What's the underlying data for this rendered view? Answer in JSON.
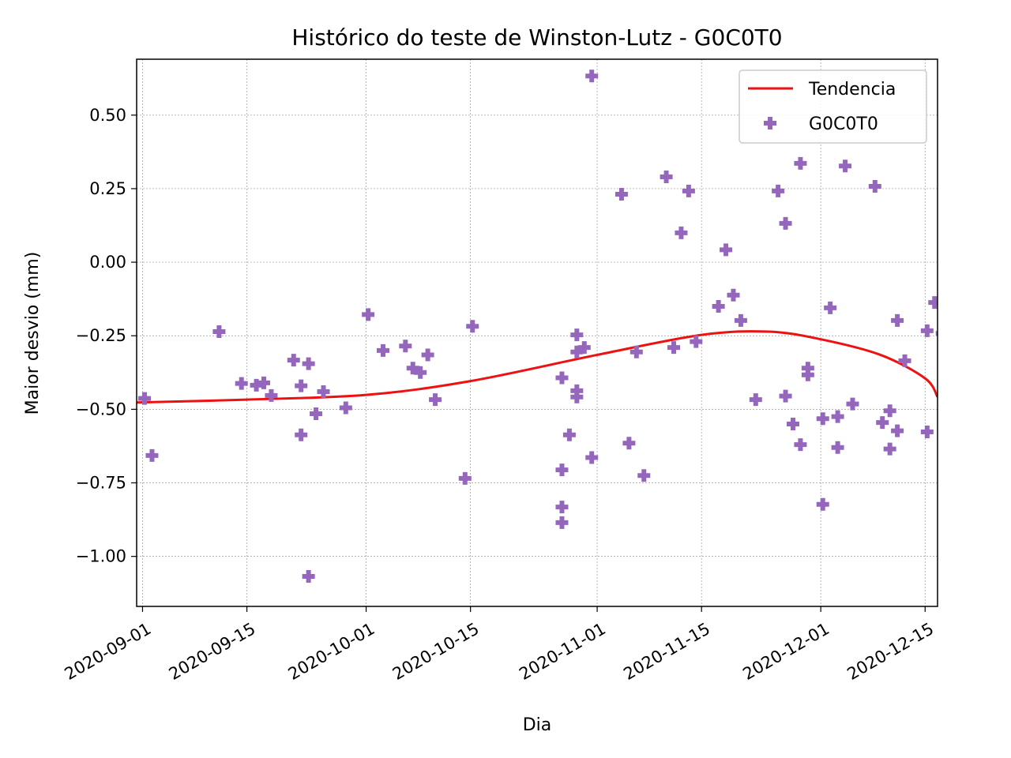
{
  "chart_data": {
    "type": "scatter",
    "title": "Histórico do teste de Winston-Lutz - G0C0T0",
    "xlabel": "Dia",
    "ylabel": "Maior desvio (mm)",
    "x_scale": "date",
    "xlim": [
      "2020-08-31T05:00",
      "2020-12-16T16:00"
    ],
    "ylim": [
      -1.17,
      0.69
    ],
    "x_ticks": [
      "2020-09-01",
      "2020-09-15",
      "2020-10-01",
      "2020-10-15",
      "2020-11-01",
      "2020-11-15",
      "2020-12-01",
      "2020-12-15"
    ],
    "y_ticks": [
      0.5,
      0.25,
      0.0,
      -0.25,
      -0.5,
      -0.75,
      -1.0
    ],
    "y_tick_labels": [
      "0.50",
      "0.25",
      "0.00",
      "−0.25",
      "−0.50",
      "−0.75",
      "−1.00"
    ],
    "grid": true,
    "legend_position": "top-right",
    "colors": {
      "trend": "#ee1111",
      "points": "#9467bd",
      "grid": "#999999",
      "axes": "#000000"
    },
    "series": [
      {
        "name": "Tendencia",
        "type": "line",
        "points": [
          [
            "2020-08-31T05:00",
            -0.477
          ],
          [
            "2020-09-15",
            -0.467
          ],
          [
            "2020-10-01",
            -0.451
          ],
          [
            "2020-10-15",
            -0.404
          ],
          [
            "2020-11-01",
            -0.315
          ],
          [
            "2020-11-15",
            -0.247
          ],
          [
            "2020-11-24",
            -0.236
          ],
          [
            "2020-12-01",
            -0.262
          ],
          [
            "2020-12-09",
            -0.315
          ],
          [
            "2020-12-15",
            -0.395
          ],
          [
            "2020-12-16T16:00",
            -0.458
          ]
        ]
      },
      {
        "name": "G0C0T0",
        "type": "scatter",
        "marker": "plus-filled",
        "points": [
          [
            "2020-08-31",
            -0.463
          ],
          [
            "2020-09-01",
            -0.657
          ],
          [
            "2020-09-10",
            -0.236
          ],
          [
            "2020-09-13",
            -0.412
          ],
          [
            "2020-09-15",
            -0.418
          ],
          [
            "2020-09-16",
            -0.41
          ],
          [
            "2020-09-17",
            -0.453
          ],
          [
            "2020-09-20",
            -0.333
          ],
          [
            "2020-09-21",
            -0.42
          ],
          [
            "2020-09-21",
            -0.587
          ],
          [
            "2020-09-22",
            -0.345
          ],
          [
            "2020-09-22",
            -1.068
          ],
          [
            "2020-09-23",
            -0.515
          ],
          [
            "2020-09-24",
            -0.44
          ],
          [
            "2020-09-27",
            -0.495
          ],
          [
            "2020-09-30",
            -0.178
          ],
          [
            "2020-10-02",
            -0.3
          ],
          [
            "2020-10-05",
            -0.285
          ],
          [
            "2020-10-06",
            -0.36
          ],
          [
            "2020-10-07",
            -0.375
          ],
          [
            "2020-10-08",
            -0.315
          ],
          [
            "2020-10-09",
            -0.467
          ],
          [
            "2020-10-13",
            -0.735
          ],
          [
            "2020-10-14",
            -0.218
          ],
          [
            "2020-10-26",
            -0.393
          ],
          [
            "2020-10-26",
            -0.706
          ],
          [
            "2020-10-26",
            -0.832
          ],
          [
            "2020-10-26",
            -0.885
          ],
          [
            "2020-10-27",
            -0.587
          ],
          [
            "2020-10-28",
            -0.247
          ],
          [
            "2020-10-28",
            -0.305
          ],
          [
            "2020-10-28",
            -0.437
          ],
          [
            "2020-10-28",
            -0.458
          ],
          [
            "2020-10-29",
            -0.29
          ],
          [
            "2020-10-30",
            0.633
          ],
          [
            "2020-10-30",
            -0.664
          ],
          [
            "2020-11-03",
            0.231
          ],
          [
            "2020-11-04",
            -0.615
          ],
          [
            "2020-11-05",
            -0.305
          ],
          [
            "2020-11-06",
            -0.725
          ],
          [
            "2020-11-09",
            0.29
          ],
          [
            "2020-11-10",
            -0.29
          ],
          [
            "2020-11-11",
            0.1
          ],
          [
            "2020-11-12",
            0.242
          ],
          [
            "2020-11-13",
            -0.27
          ],
          [
            "2020-11-16",
            -0.15
          ],
          [
            "2020-11-17",
            0.042
          ],
          [
            "2020-11-18",
            -0.112
          ],
          [
            "2020-11-19",
            -0.198
          ],
          [
            "2020-11-21",
            -0.467
          ],
          [
            "2020-11-24",
            0.242
          ],
          [
            "2020-11-25",
            0.132
          ],
          [
            "2020-11-25",
            -0.455
          ],
          [
            "2020-11-26",
            -0.55
          ],
          [
            "2020-11-27",
            0.336
          ],
          [
            "2020-11-27",
            -0.62
          ],
          [
            "2020-11-28",
            -0.36
          ],
          [
            "2020-11-28",
            -0.383
          ],
          [
            "2020-11-30",
            -0.532
          ],
          [
            "2020-11-30",
            -0.823
          ],
          [
            "2020-12-01",
            -0.155
          ],
          [
            "2020-12-02",
            -0.525
          ],
          [
            "2020-12-02",
            -0.63
          ],
          [
            "2020-12-03",
            0.327
          ],
          [
            "2020-12-04",
            -0.482
          ],
          [
            "2020-12-07",
            0.258
          ],
          [
            "2020-12-08",
            -0.545
          ],
          [
            "2020-12-09",
            -0.505
          ],
          [
            "2020-12-09",
            -0.635
          ],
          [
            "2020-12-10",
            -0.198
          ],
          [
            "2020-12-10",
            -0.573
          ],
          [
            "2020-12-11",
            -0.335
          ],
          [
            "2020-12-14",
            -0.233
          ],
          [
            "2020-12-14",
            -0.577
          ],
          [
            "2020-12-15",
            -0.137
          ],
          [
            "2020-12-16",
            -0.242
          ]
        ]
      }
    ]
  }
}
